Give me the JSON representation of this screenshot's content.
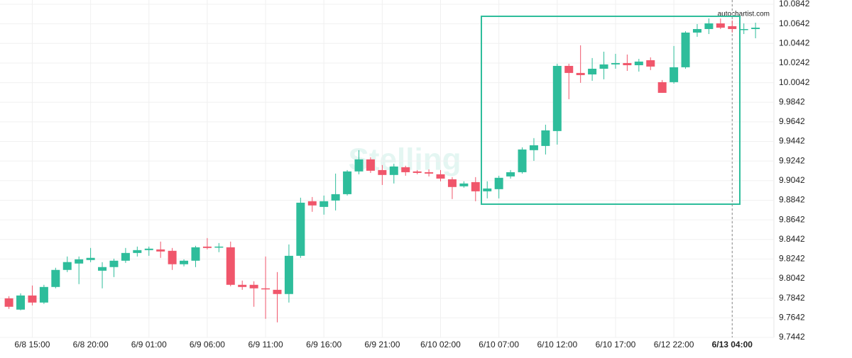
{
  "chart_data": {
    "type": "candlestick",
    "source": "autochartist.com",
    "watermark": "Stelling",
    "up_color": "#2ebd9b",
    "down_color": "#f0566b",
    "grid": true,
    "ylim": [
      9.7442,
      10.0842
    ],
    "yticks": [
      9.7442,
      9.7642,
      9.7842,
      9.8042,
      9.8242,
      9.8442,
      9.8642,
      9.8842,
      9.9042,
      9.9242,
      9.9442,
      9.9642,
      9.9842,
      10.0042,
      10.0242,
      10.0442,
      10.0642,
      10.0842
    ],
    "categories": [
      null,
      null,
      "6/8 15:00",
      null,
      null,
      null,
      null,
      "6/8 20:00",
      null,
      null,
      null,
      null,
      "6/9 01:00",
      null,
      null,
      null,
      null,
      "6/9 06:00",
      null,
      null,
      null,
      null,
      "6/9 11:00",
      null,
      null,
      null,
      null,
      "6/9 16:00",
      null,
      null,
      null,
      null,
      "6/9 21:00",
      null,
      null,
      null,
      null,
      "6/10 02:00",
      null,
      null,
      null,
      null,
      "6/10 07:00",
      null,
      null,
      null,
      null,
      "6/10 12:00",
      null,
      null,
      null,
      null,
      "6/10 17:00",
      null,
      null,
      null,
      null,
      "6/12 22:00",
      null,
      null,
      null,
      null,
      "6/13 04:00",
      null,
      null
    ],
    "open": [
      9.7841,
      9.7726,
      9.787,
      9.7798,
      9.7957,
      9.8131,
      9.8196,
      9.8232,
      9.8123,
      9.816,
      9.8225,
      9.8304,
      9.8333,
      9.834,
      9.8326,
      9.8189,
      9.8225,
      9.8369,
      9.8362,
      9.8362,
      9.7979,
      9.7979,
      9.7943,
      9.7928,
      9.7885,
      9.8275,
      9.8832,
      9.8774,
      9.8839,
      9.8904,
      9.9136,
      9.9259,
      9.915,
      9.91,
      9.9179,
      9.9136,
      9.9128,
      9.9107,
      9.9056,
      9.8984,
      9.9027,
      9.8933,
      9.8955,
      9.9085,
      9.9128,
      9.9353,
      9.9396,
      9.9548,
      10.0213,
      10.0141,
      10.0126,
      10.0184,
      10.0228,
      10.0242,
      10.022,
      10.0271,
      10.0047,
      10.0047,
      10.0199,
      10.0553,
      10.0589,
      10.0647,
      10.0618,
      10.0582,
      10.0589
    ],
    "high": [
      9.7863,
      9.7892,
      9.7972,
      9.7979,
      9.8153,
      9.8268,
      9.8268,
      9.8355,
      9.821,
      9.8246,
      9.8355,
      9.8369,
      9.8369,
      9.842,
      9.8355,
      9.8239,
      9.8377,
      9.8456,
      9.8405,
      9.842,
      9.8022,
      9.8015,
      9.8268,
      9.8109,
      9.8391,
      9.8868,
      9.8875,
      9.889,
      9.9114,
      9.915,
      9.9353,
      9.9281,
      9.9201,
      9.9215,
      9.9194,
      9.915,
      9.9157,
      9.915,
      9.9078,
      9.9035,
      9.9078,
      9.9035,
      9.9092,
      9.915,
      9.9382,
      9.9476,
      9.9613,
      10.0235,
      10.0235,
      10.0423,
      10.0293,
      10.0358,
      10.0336,
      10.0329,
      10.0285,
      10.03,
      10.0069,
      10.0416,
      10.0567,
      10.064,
      10.0697,
      10.0697,
      10.0676,
      10.0647,
      10.0654
    ],
    "low": [
      9.7733,
      9.7719,
      9.7769,
      9.7784,
      9.7943,
      9.8109,
      9.7986,
      9.821,
      9.7943,
      9.8058,
      9.8203,
      9.8268,
      9.8275,
      9.8254,
      9.8131,
      9.8167,
      9.816,
      9.834,
      9.8312,
      9.7964,
      9.7928,
      9.7755,
      9.7632,
      9.7596,
      9.7798,
      9.8254,
      9.8724,
      9.8695,
      9.8738,
      9.889,
      9.9107,
      9.9121,
      9.8998,
      9.9013,
      9.9092,
      9.9107,
      9.9085,
      9.9035,
      9.8854,
      9.897,
      9.8832,
      9.8861,
      9.8861,
      9.9063,
      9.9114,
      9.9244,
      9.9309,
      9.941,
      9.9873,
      10.004,
      10.0061,
      10.0076,
      10.0184,
      10.0162,
      10.0155,
      10.017,
      9.9938,
      10.0032,
      10.0184,
      10.051,
      10.0538,
      10.0589,
      10.0553,
      10.0538,
      10.0495
    ],
    "close": [
      9.7755,
      9.787,
      9.7798,
      9.7957,
      9.8131,
      9.8211,
      9.8239,
      9.8254,
      9.816,
      9.8225,
      9.8304,
      9.8333,
      9.8348,
      9.8319,
      9.8189,
      9.8225,
      9.8362,
      9.8355,
      9.8369,
      9.7979,
      9.7957,
      9.7943,
      9.7935,
      9.7885,
      9.8275,
      9.8817,
      9.8789,
      9.8832,
      9.8904,
      9.9136,
      9.9259,
      9.9143,
      9.91,
      9.9186,
      9.9128,
      9.9121,
      9.9114,
      9.9063,
      9.8977,
      9.9013,
      9.8933,
      9.8962,
      9.9071,
      9.9128,
      9.936,
      9.9403,
      9.9555,
      10.0213,
      10.0141,
      10.0119,
      10.0184,
      10.0228,
      10.0242,
      10.022,
      10.0257,
      10.0206,
      9.9938,
      10.0199,
      10.0553,
      10.0589,
      10.0647,
      10.0603,
      10.0589,
      10.0589,
      10.0603
    ]
  }
}
